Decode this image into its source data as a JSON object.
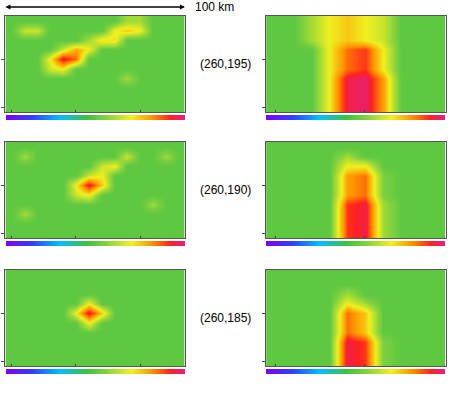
{
  "chart_data": {
    "type": "heatmap",
    "annotations": [
      "100 km"
    ],
    "zlim": [
      0,
      1
    ],
    "tick_labels": false,
    "rows": [
      {
        "label": "(260,195)",
        "plan": [
          [
            0.5,
            0.5,
            0.5,
            0.5,
            0.5,
            0.5,
            0.5,
            0.5,
            0.5,
            0.5,
            0.5,
            0.5,
            0.5,
            0.5
          ],
          [
            0.5,
            0.5,
            0.5,
            0.5,
            0.5,
            0.5,
            0.5,
            0.5,
            0.5,
            0.5,
            0.5,
            0.5,
            0.5,
            0.5
          ],
          [
            0.5,
            0.5,
            0.5,
            0.5,
            0.5,
            0.5,
            0.5,
            0.5,
            0.5,
            0.5,
            0.5,
            0.5,
            0.5,
            0.5
          ],
          [
            0.5,
            0.5,
            0.5,
            0.5,
            0.5,
            0.5,
            0.5,
            0.5,
            0.5,
            0.6,
            0.5,
            0.5,
            0.5,
            0.5
          ],
          [
            0.5,
            0.5,
            0.5,
            0.65,
            0.7,
            0.5,
            0.5,
            0.5,
            0.5,
            0.5,
            0.5,
            0.5,
            0.5,
            0.5
          ],
          [
            0.5,
            0.5,
            0.5,
            0.7,
            0.95,
            0.85,
            0.5,
            0.5,
            0.5,
            0.5,
            0.5,
            0.5,
            0.5,
            0.5
          ],
          [
            0.5,
            0.5,
            0.5,
            0.5,
            0.65,
            0.8,
            0.7,
            0.5,
            0.5,
            0.5,
            0.5,
            0.5,
            0.5,
            0.5
          ],
          [
            0.5,
            0.5,
            0.5,
            0.5,
            0.5,
            0.5,
            0.6,
            0.72,
            0.72,
            0.5,
            0.5,
            0.5,
            0.5,
            0.5
          ],
          [
            0.5,
            0.65,
            0.65,
            0.5,
            0.5,
            0.5,
            0.5,
            0.5,
            0.7,
            0.75,
            0.7,
            0.5,
            0.5,
            0.5
          ],
          [
            0.5,
            0.5,
            0.5,
            0.5,
            0.5,
            0.5,
            0.5,
            0.5,
            0.5,
            0.6,
            0.6,
            0.5,
            0.5,
            0.5
          ]
        ],
        "section": [
          [
            0.5,
            0.5,
            0.5,
            0.7,
            0.95,
            0.98,
            0.8,
            0.5,
            0.5,
            0.5
          ],
          [
            0.5,
            0.5,
            0.5,
            0.7,
            0.95,
            0.98,
            0.8,
            0.5,
            0.5,
            0.5
          ],
          [
            0.5,
            0.5,
            0.5,
            0.7,
            0.95,
            0.98,
            0.8,
            0.5,
            0.5,
            0.5
          ],
          [
            0.5,
            0.5,
            0.5,
            0.7,
            0.95,
            0.98,
            0.8,
            0.5,
            0.5,
            0.5
          ],
          [
            0.5,
            0.5,
            0.5,
            0.7,
            0.85,
            0.9,
            0.7,
            0.5,
            0.5,
            0.5
          ],
          [
            0.5,
            0.5,
            0.5,
            0.7,
            0.85,
            0.9,
            0.7,
            0.5,
            0.5,
            0.5
          ],
          [
            0.5,
            0.5,
            0.5,
            0.7,
            0.85,
            0.9,
            0.7,
            0.5,
            0.5,
            0.5
          ],
          [
            0.5,
            0.5,
            0.6,
            0.7,
            0.75,
            0.7,
            0.65,
            0.5,
            0.5,
            0.5
          ],
          [
            0.5,
            0.5,
            0.6,
            0.7,
            0.75,
            0.7,
            0.65,
            0.5,
            0.5,
            0.5
          ],
          [
            0.5,
            0.5,
            0.6,
            0.7,
            0.75,
            0.7,
            0.65,
            0.5,
            0.5,
            0.5
          ]
        ]
      },
      {
        "label": "(260,190)",
        "plan": [
          [
            0.5,
            0.5,
            0.5,
            0.5,
            0.5,
            0.5,
            0.5,
            0.5,
            0.5,
            0.5,
            0.5,
            0.5,
            0.5,
            0.5
          ],
          [
            0.5,
            0.5,
            0.5,
            0.5,
            0.5,
            0.5,
            0.5,
            0.5,
            0.5,
            0.5,
            0.5,
            0.5,
            0.5,
            0.5
          ],
          [
            0.5,
            0.6,
            0.5,
            0.5,
            0.5,
            0.5,
            0.5,
            0.5,
            0.5,
            0.5,
            0.5,
            0.5,
            0.5,
            0.5
          ],
          [
            0.5,
            0.5,
            0.5,
            0.5,
            0.5,
            0.5,
            0.5,
            0.5,
            0.5,
            0.5,
            0.5,
            0.6,
            0.5,
            0.5
          ],
          [
            0.5,
            0.5,
            0.5,
            0.5,
            0.5,
            0.65,
            0.7,
            0.5,
            0.5,
            0.5,
            0.5,
            0.5,
            0.5,
            0.5
          ],
          [
            0.5,
            0.5,
            0.5,
            0.5,
            0.5,
            0.7,
            0.95,
            0.75,
            0.5,
            0.5,
            0.5,
            0.5,
            0.5,
            0.5
          ],
          [
            0.5,
            0.5,
            0.5,
            0.5,
            0.5,
            0.5,
            0.65,
            0.7,
            0.5,
            0.5,
            0.5,
            0.5,
            0.5,
            0.5
          ],
          [
            0.5,
            0.5,
            0.5,
            0.5,
            0.5,
            0.5,
            0.5,
            0.65,
            0.7,
            0.5,
            0.5,
            0.5,
            0.5,
            0.5
          ],
          [
            0.5,
            0.6,
            0.5,
            0.5,
            0.5,
            0.5,
            0.5,
            0.5,
            0.5,
            0.65,
            0.5,
            0.5,
            0.6,
            0.5
          ],
          [
            0.5,
            0.5,
            0.5,
            0.5,
            0.5,
            0.5,
            0.5,
            0.5,
            0.5,
            0.5,
            0.5,
            0.5,
            0.5,
            0.5
          ]
        ],
        "section": [
          [
            0.5,
            0.5,
            0.5,
            0.5,
            0.9,
            0.95,
            0.6,
            0.5,
            0.5,
            0.5
          ],
          [
            0.5,
            0.5,
            0.5,
            0.5,
            0.9,
            0.95,
            0.6,
            0.5,
            0.5,
            0.5
          ],
          [
            0.5,
            0.5,
            0.5,
            0.5,
            0.9,
            0.95,
            0.6,
            0.5,
            0.5,
            0.5
          ],
          [
            0.5,
            0.5,
            0.5,
            0.5,
            0.9,
            0.95,
            0.6,
            0.5,
            0.5,
            0.5
          ],
          [
            0.5,
            0.5,
            0.5,
            0.5,
            0.8,
            0.85,
            0.55,
            0.5,
            0.5,
            0.5
          ],
          [
            0.5,
            0.5,
            0.5,
            0.5,
            0.8,
            0.85,
            0.55,
            0.5,
            0.5,
            0.5
          ],
          [
            0.5,
            0.5,
            0.5,
            0.5,
            0.8,
            0.85,
            0.55,
            0.5,
            0.5,
            0.5
          ],
          [
            0.5,
            0.5,
            0.5,
            0.5,
            0.7,
            0.7,
            0.5,
            0.5,
            0.5,
            0.5
          ],
          [
            0.5,
            0.5,
            0.5,
            0.5,
            0.6,
            0.5,
            0.5,
            0.5,
            0.5,
            0.5
          ],
          [
            0.5,
            0.5,
            0.5,
            0.5,
            0.5,
            0.5,
            0.5,
            0.5,
            0.5,
            0.5
          ]
        ]
      },
      {
        "label": "(260,185)",
        "plan": [
          [
            0.5,
            0.5,
            0.5,
            0.5,
            0.5,
            0.5,
            0.5,
            0.5,
            0.5,
            0.5,
            0.5,
            0.5,
            0.5,
            0.5
          ],
          [
            0.5,
            0.5,
            0.5,
            0.5,
            0.5,
            0.5,
            0.5,
            0.5,
            0.5,
            0.5,
            0.5,
            0.5,
            0.5,
            0.5
          ],
          [
            0.5,
            0.5,
            0.5,
            0.5,
            0.5,
            0.5,
            0.5,
            0.5,
            0.5,
            0.5,
            0.5,
            0.5,
            0.5,
            0.5
          ],
          [
            0.5,
            0.5,
            0.5,
            0.5,
            0.5,
            0.5,
            0.5,
            0.5,
            0.5,
            0.5,
            0.5,
            0.5,
            0.5,
            0.5
          ],
          [
            0.5,
            0.5,
            0.5,
            0.5,
            0.5,
            0.5,
            0.7,
            0.5,
            0.5,
            0.5,
            0.5,
            0.5,
            0.5,
            0.5
          ],
          [
            0.5,
            0.5,
            0.5,
            0.5,
            0.5,
            0.7,
            0.95,
            0.75,
            0.5,
            0.5,
            0.5,
            0.5,
            0.5,
            0.5
          ],
          [
            0.5,
            0.5,
            0.5,
            0.5,
            0.5,
            0.5,
            0.7,
            0.5,
            0.5,
            0.5,
            0.5,
            0.5,
            0.5,
            0.5
          ],
          [
            0.5,
            0.5,
            0.5,
            0.5,
            0.5,
            0.5,
            0.5,
            0.5,
            0.5,
            0.5,
            0.5,
            0.5,
            0.5,
            0.5
          ],
          [
            0.5,
            0.5,
            0.5,
            0.5,
            0.5,
            0.5,
            0.5,
            0.5,
            0.5,
            0.5,
            0.5,
            0.5,
            0.5,
            0.5
          ],
          [
            0.5,
            0.5,
            0.5,
            0.5,
            0.5,
            0.5,
            0.5,
            0.5,
            0.5,
            0.5,
            0.5,
            0.5,
            0.5,
            0.5
          ]
        ],
        "section": [
          [
            0.5,
            0.5,
            0.5,
            0.5,
            0.95,
            0.9,
            0.55,
            0.5,
            0.5,
            0.5
          ],
          [
            0.5,
            0.5,
            0.5,
            0.5,
            0.95,
            0.9,
            0.55,
            0.5,
            0.5,
            0.5
          ],
          [
            0.5,
            0.5,
            0.5,
            0.5,
            0.95,
            0.9,
            0.55,
            0.5,
            0.5,
            0.5
          ],
          [
            0.5,
            0.5,
            0.5,
            0.5,
            0.85,
            0.75,
            0.5,
            0.5,
            0.5,
            0.5
          ],
          [
            0.5,
            0.5,
            0.5,
            0.5,
            0.85,
            0.75,
            0.5,
            0.5,
            0.5,
            0.5
          ],
          [
            0.5,
            0.5,
            0.5,
            0.5,
            0.85,
            0.75,
            0.5,
            0.5,
            0.5,
            0.5
          ],
          [
            0.5,
            0.5,
            0.5,
            0.5,
            0.7,
            0.6,
            0.5,
            0.5,
            0.5,
            0.5
          ],
          [
            0.5,
            0.5,
            0.5,
            0.5,
            0.6,
            0.5,
            0.5,
            0.5,
            0.5,
            0.5
          ],
          [
            0.5,
            0.5,
            0.5,
            0.5,
            0.5,
            0.5,
            0.5,
            0.5,
            0.5,
            0.5
          ],
          [
            0.5,
            0.5,
            0.5,
            0.5,
            0.5,
            0.5,
            0.5,
            0.5,
            0.5,
            0.5
          ]
        ]
      }
    ]
  }
}
